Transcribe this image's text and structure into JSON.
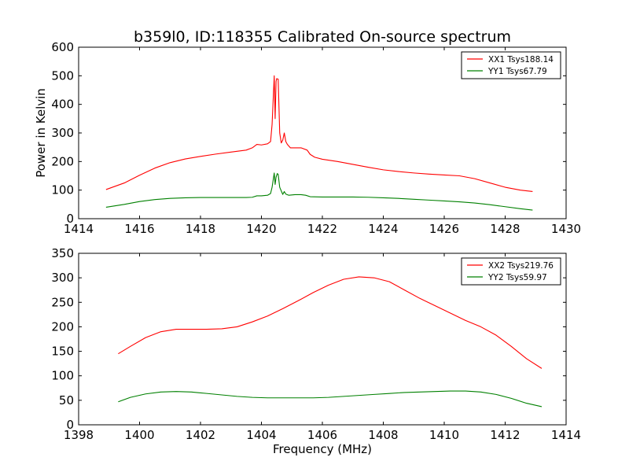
{
  "chart_data": [
    {
      "type": "line",
      "title": "b359l0, ID:118355 Calibrated On-source spectrum",
      "ylabel": "Power in Kelvin",
      "xlabel": "",
      "xlim": [
        1414,
        1430
      ],
      "ylim": [
        0,
        600
      ],
      "xticks": [
        1414,
        1416,
        1418,
        1420,
        1422,
        1424,
        1426,
        1428,
        1430
      ],
      "yticks": [
        0,
        100,
        200,
        300,
        400,
        500,
        600
      ],
      "grid": false,
      "legend_position": "top-right",
      "series": [
        {
          "name": "XX1 Tsys188.14",
          "color": "#ff0000",
          "x": [
            1414.9,
            1415.5,
            1416.0,
            1416.5,
            1417.0,
            1417.5,
            1418.0,
            1418.5,
            1419.0,
            1419.5,
            1419.7,
            1419.85,
            1420.0,
            1420.2,
            1420.3,
            1420.35,
            1420.42,
            1420.45,
            1420.48,
            1420.5,
            1420.55,
            1420.6,
            1420.65,
            1420.7,
            1420.75,
            1420.8,
            1420.85,
            1420.95,
            1421.1,
            1421.3,
            1421.5,
            1421.6,
            1421.75,
            1422.0,
            1422.5,
            1423.0,
            1423.5,
            1424.0,
            1424.5,
            1425.0,
            1425.5,
            1426.0,
            1426.5,
            1427.0,
            1427.5,
            1428.0,
            1428.5,
            1428.9
          ],
          "y": [
            102,
            125,
            152,
            177,
            196,
            209,
            218,
            226,
            233,
            240,
            248,
            260,
            258,
            262,
            270,
            330,
            500,
            350,
            480,
            490,
            488,
            300,
            265,
            275,
            300,
            270,
            260,
            248,
            248,
            248,
            240,
            225,
            215,
            208,
            200,
            190,
            180,
            171,
            165,
            160,
            156,
            153,
            150,
            140,
            125,
            110,
            100,
            95
          ]
        },
        {
          "name": "YY1 Tsys67.79",
          "color": "#008000",
          "x": [
            1414.9,
            1415.5,
            1416.0,
            1416.5,
            1417.0,
            1417.5,
            1418.0,
            1418.5,
            1419.0,
            1419.5,
            1419.7,
            1419.85,
            1420.0,
            1420.2,
            1420.3,
            1420.35,
            1420.42,
            1420.45,
            1420.48,
            1420.52,
            1420.55,
            1420.6,
            1420.7,
            1420.75,
            1420.8,
            1420.9,
            1421.1,
            1421.3,
            1421.45,
            1421.6,
            1422.0,
            1422.5,
            1423.0,
            1423.5,
            1424.0,
            1424.5,
            1425.0,
            1425.5,
            1426.0,
            1426.5,
            1427.0,
            1427.5,
            1428.0,
            1428.5,
            1428.9
          ],
          "y": [
            40,
            50,
            60,
            67,
            71,
            73,
            74,
            74,
            74,
            74,
            75,
            80,
            80,
            82,
            88,
            110,
            160,
            120,
            145,
            158,
            155,
            110,
            85,
            95,
            86,
            82,
            84,
            84,
            82,
            77,
            76,
            76,
            76,
            75,
            73,
            71,
            68,
            65,
            62,
            59,
            55,
            49,
            42,
            35,
            30
          ]
        }
      ]
    },
    {
      "type": "line",
      "title": "",
      "xlabel": "Frequency (MHz)",
      "ylabel": "",
      "xlim": [
        1398,
        1414
      ],
      "ylim": [
        0,
        350
      ],
      "xticks": [
        1398,
        1400,
        1402,
        1404,
        1406,
        1408,
        1410,
        1412,
        1414
      ],
      "yticks": [
        0,
        50,
        100,
        150,
        200,
        250,
        300,
        350
      ],
      "grid": false,
      "legend_position": "top-right",
      "series": [
        {
          "name": "XX2 Tsys219.76",
          "color": "#ff0000",
          "x": [
            1399.3,
            1399.7,
            1400.2,
            1400.7,
            1401.2,
            1401.7,
            1402.2,
            1402.7,
            1403.2,
            1403.7,
            1404.2,
            1404.7,
            1405.2,
            1405.7,
            1406.2,
            1406.7,
            1407.2,
            1407.7,
            1408.2,
            1408.7,
            1409.2,
            1409.7,
            1410.2,
            1410.7,
            1411.2,
            1411.7,
            1412.2,
            1412.7,
            1413.2
          ],
          "y": [
            145,
            160,
            178,
            190,
            195,
            195,
            195,
            196,
            200,
            210,
            222,
            237,
            253,
            270,
            285,
            297,
            302,
            300,
            292,
            275,
            258,
            243,
            228,
            213,
            200,
            183,
            160,
            135,
            115
          ]
        },
        {
          "name": "YY2 Tsys59.97",
          "color": "#008000",
          "x": [
            1399.3,
            1399.7,
            1400.2,
            1400.7,
            1401.2,
            1401.7,
            1402.2,
            1402.7,
            1403.2,
            1403.7,
            1404.2,
            1404.7,
            1405.2,
            1405.7,
            1406.2,
            1406.7,
            1407.2,
            1407.7,
            1408.2,
            1408.7,
            1409.2,
            1409.7,
            1410.2,
            1410.7,
            1411.2,
            1411.7,
            1412.2,
            1412.7,
            1413.2
          ],
          "y": [
            47,
            56,
            63,
            67,
            68,
            67,
            64,
            61,
            58,
            56,
            55,
            55,
            55,
            55,
            56,
            58,
            60,
            62,
            64,
            66,
            67,
            68,
            69,
            69,
            67,
            62,
            54,
            44,
            37
          ]
        }
      ]
    }
  ]
}
